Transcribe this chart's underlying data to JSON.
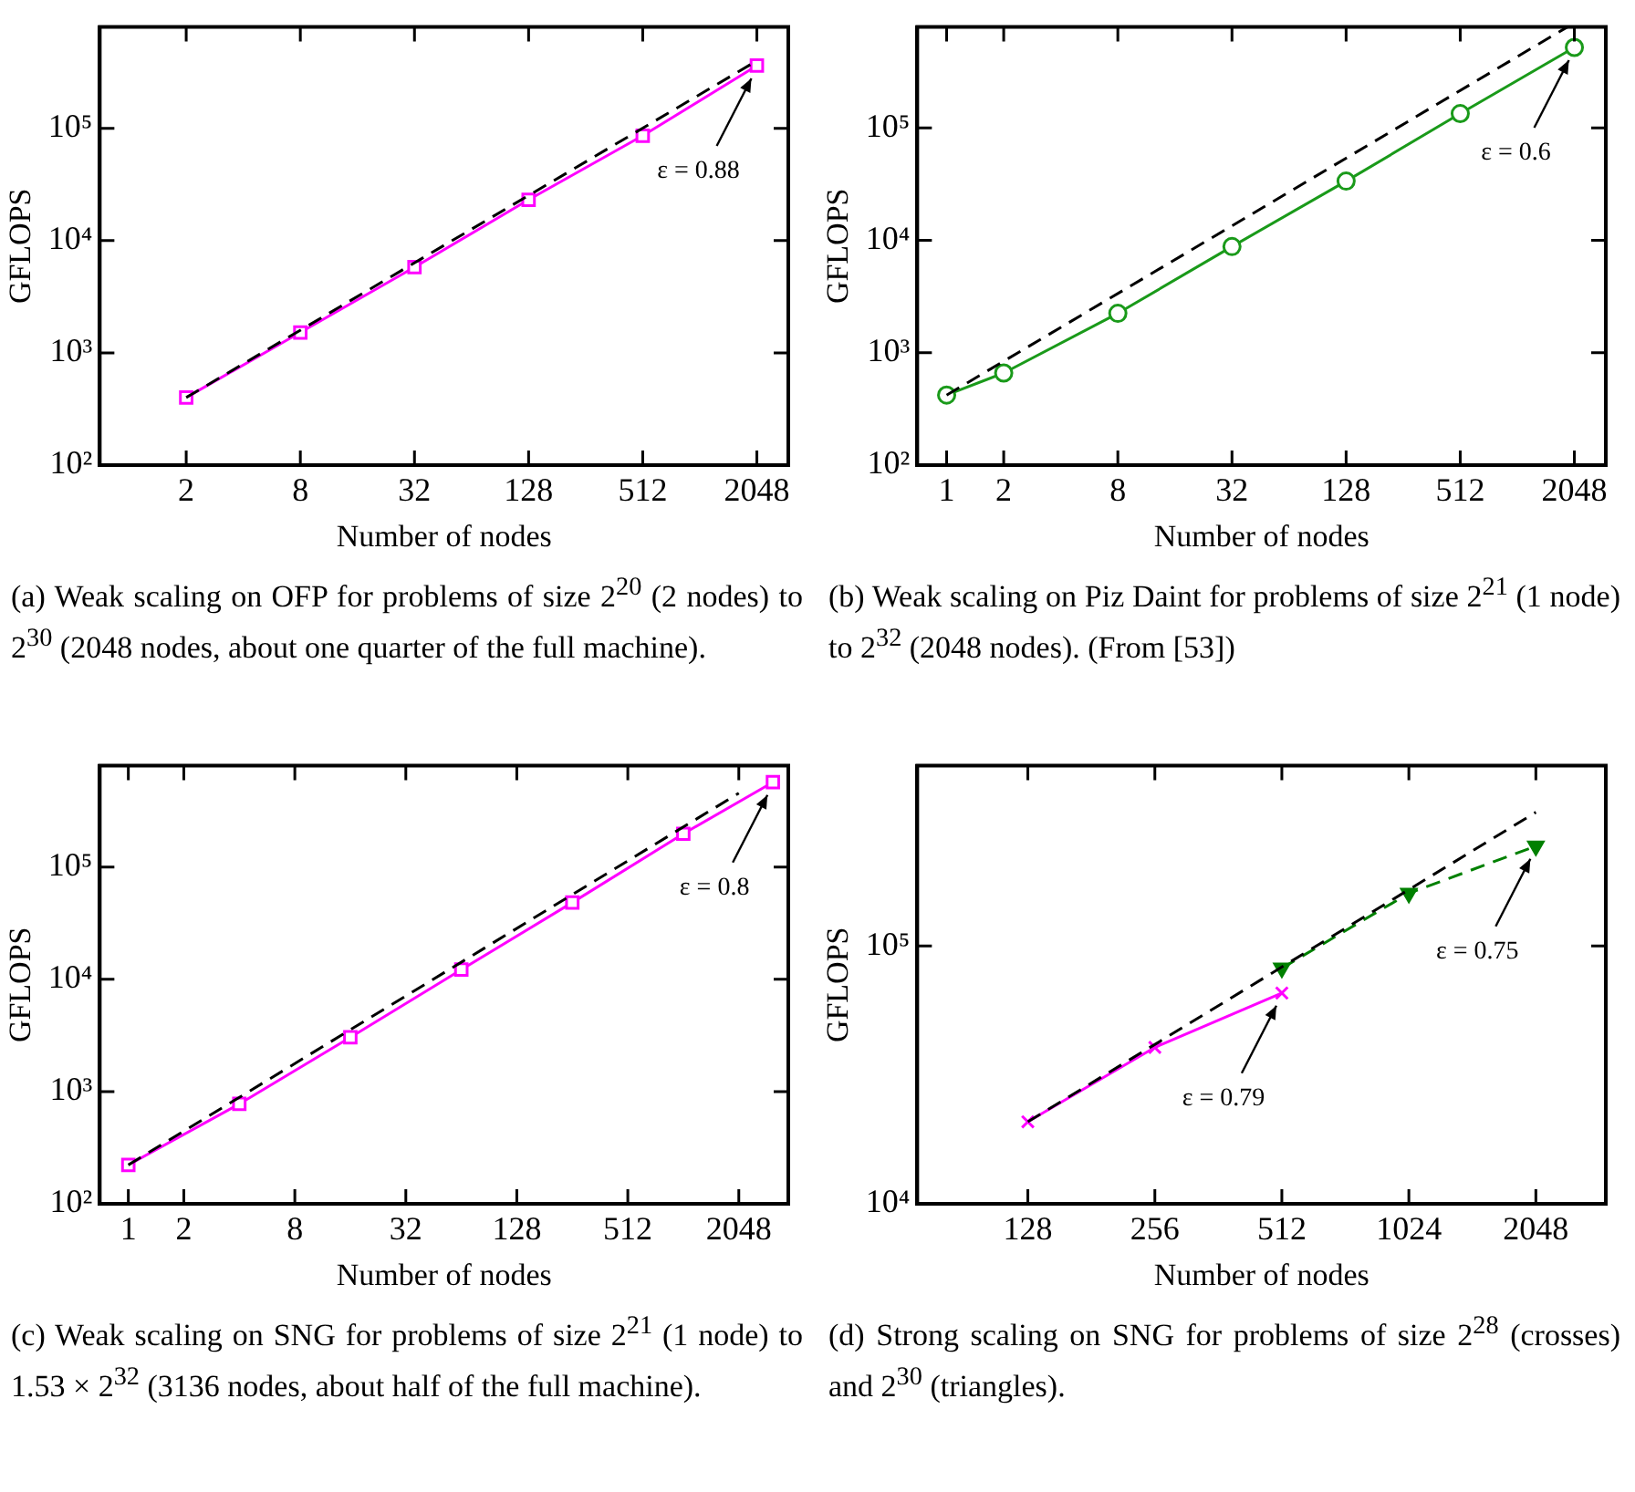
{
  "chart_data": [
    {
      "type": "line",
      "xlabel": "Number of nodes",
      "ylabel": "GFLOPS",
      "log": "xy",
      "xlim": [
        0.7,
        3000
      ],
      "xticks": [
        2,
        8,
        32,
        128,
        512,
        2048
      ],
      "ylim": [
        100,
        800000
      ],
      "yticks": [
        {
          "value": 100,
          "label": "10²"
        },
        {
          "value": 1000,
          "label": "10³"
        },
        {
          "value": 10000,
          "label": "10⁴"
        },
        {
          "value": 100000,
          "label": "10⁵"
        }
      ],
      "series": [
        {
          "color": "#000000",
          "line_style": "dashed",
          "marker": "none",
          "x": [
            2,
            2048
          ],
          "values": [
            400,
            400000
          ]
        },
        {
          "color": "#ff00ff",
          "line_style": "solid",
          "marker": "square",
          "x": [
            2,
            8,
            32,
            128,
            512,
            2048
          ],
          "values": [
            400,
            1520,
            5800,
            23100,
            86000,
            362000
          ]
        }
      ],
      "annotations": [
        {
          "text": "ε = 0.88",
          "x": 2048,
          "y": 362000
        },
        "(a) Weak scaling on OFP for problems of size 2$^{20}$ (2 nodes) to 2$^{30}$ (2048 nodes, about one quarter of the full machine)."
      ]
    },
    {
      "type": "line",
      "xlabel": "Number of nodes",
      "ylabel": "GFLOPS",
      "log": "xy",
      "xlim": [
        0.7,
        3000
      ],
      "xticks": [
        1,
        2,
        8,
        32,
        128,
        512,
        2048
      ],
      "ylim": [
        100,
        790000
      ],
      "yticks": [
        {
          "value": 100,
          "label": "10²"
        },
        {
          "value": 1000,
          "label": "10³"
        },
        {
          "value": 10000,
          "label": "10⁴"
        },
        {
          "value": 100000,
          "label": "10⁵"
        }
      ],
      "series": [
        {
          "color": "#000000",
          "line_style": "dashed",
          "marker": "none",
          "x": [
            1,
            1880
          ],
          "values": [
            420,
            790000
          ]
        },
        {
          "color": "#1a9a1a",
          "line_style": "solid",
          "marker": "circle",
          "x": [
            1,
            2,
            8,
            32,
            128,
            512,
            2048
          ],
          "values": [
            420,
            660,
            2240,
            8800,
            33600,
            134000,
            520000
          ]
        }
      ],
      "annotations": [
        {
          "text": "ε = 0.6",
          "x": 2048,
          "y": 520000
        },
        "(b) Weak scaling on Piz Daint for problems of size 2$^{21}$ (1 node) to 2$^{32}$ (2048 nodes). (From [53])"
      ]
    },
    {
      "type": "line",
      "xlabel": "Number of nodes",
      "ylabel": "GFLOPS",
      "log": "xy",
      "xlim": [
        0.7,
        3800
      ],
      "xticks": [
        1,
        2,
        8,
        32,
        128,
        512,
        2048
      ],
      "ylim": [
        100,
        800000
      ],
      "yticks": [
        {
          "value": 100,
          "label": "10²"
        },
        {
          "value": 1000,
          "label": "10³"
        },
        {
          "value": 10000,
          "label": "10⁴"
        },
        {
          "value": 100000,
          "label": "10⁵"
        }
      ],
      "series": [
        {
          "color": "#000000",
          "line_style": "dashed",
          "marker": "none",
          "x": [
            1,
            2048
          ],
          "values": [
            222,
            455000
          ]
        },
        {
          "color": "#ff00ff",
          "line_style": "solid",
          "marker": "square",
          "x": [
            1,
            4,
            16,
            64,
            256,
            1024,
            3136
          ],
          "values": [
            222,
            776,
            3040,
            12200,
            48300,
            198000,
            570000
          ]
        }
      ],
      "annotations": [
        {
          "text": "ε = 0.8",
          "x": 3136,
          "y": 570000
        },
        "(c) Weak scaling on SNG for problems of size 2$^{21}$ (1 node) to 1.53 × 2$^{32}$ (3136 nodes, about half of the full machine)."
      ]
    },
    {
      "type": "line",
      "xlabel": "Number of nodes",
      "ylabel": "GFLOPS",
      "log": "xy",
      "xlim": [
        70,
        3000
      ],
      "xticks": [
        128,
        256,
        512,
        1024,
        2048
      ],
      "ylim": [
        10000,
        500000
      ],
      "yticks": [
        {
          "value": 10000,
          "label": "10⁴"
        },
        {
          "value": 100000,
          "label": "10⁵"
        }
      ],
      "series": [
        {
          "color": "#000000",
          "line_style": "dashed",
          "marker": "none",
          "x": [
            128,
            2048
          ],
          "values": [
            20800,
            330000
          ]
        },
        {
          "color": "#ff00ff",
          "line_style": "solid",
          "marker": "cross",
          "x": [
            128,
            256,
            512
          ],
          "values": [
            20800,
            40400,
            65700
          ]
        },
        {
          "color": "#008000",
          "line_style": "dashed",
          "marker": "triangle",
          "x": [
            512,
            1024,
            2048
          ],
          "values": [
            82000,
            160000,
            244000
          ]
        }
      ],
      "annotations": [
        {
          "text": "ε = 0.79",
          "x": 512,
          "y": 65700
        },
        {
          "text": "ε = 0.75",
          "x": 2048,
          "y": 244000
        },
        "(d) Strong scaling on SNG for problems of size 2$^{28}$ (crosses) and 2$^{30}$ (triangles)."
      ]
    }
  ]
}
